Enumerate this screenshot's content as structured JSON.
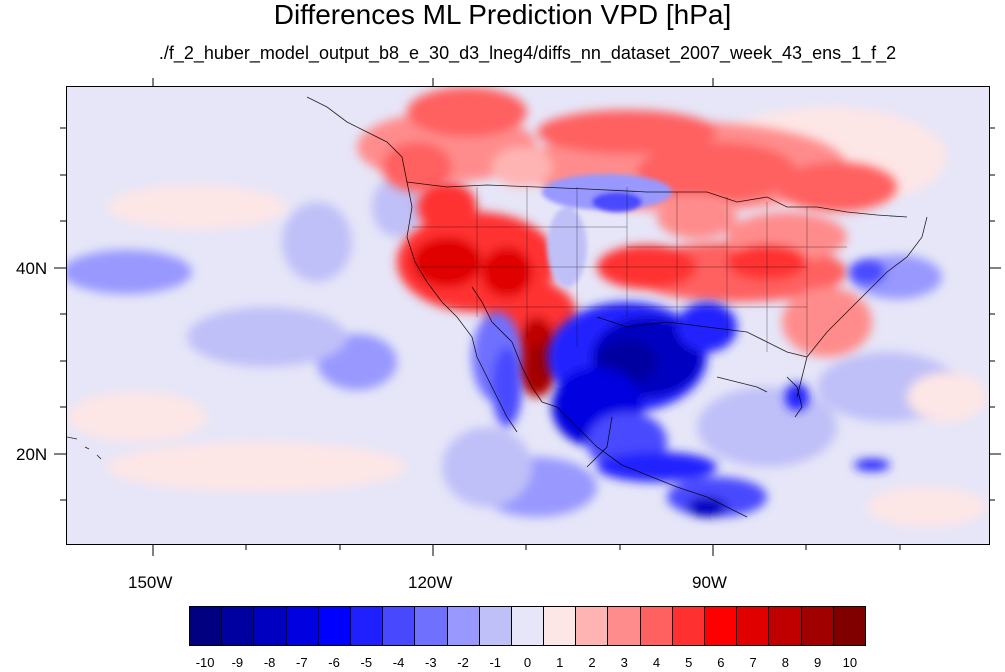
{
  "title": "Differences ML Prediction VPD [hPa]",
  "subtitle": "./f_2_huber_model_output_b8_e_30_d3_lneg4/diffs_nn_dataset_2007_week_43_ens_1_f_2",
  "lat_labels": [
    "40N",
    "20N"
  ],
  "lon_labels": [
    "150W",
    "120W",
    "90W"
  ],
  "colorbar": {
    "labels": [
      "-10",
      "-9",
      "-8",
      "-7",
      "-6",
      "-5",
      "-4",
      "-3",
      "-2",
      "-1",
      "0",
      "1",
      "2",
      "3",
      "4",
      "5",
      "6",
      "7",
      "8",
      "9",
      "10"
    ],
    "colors": [
      "#000080",
      "#0000a0",
      "#0000c0",
      "#0000e0",
      "#0000ff",
      "#2020ff",
      "#4848ff",
      "#7070ff",
      "#9898ff",
      "#c0c0f8",
      "#e6e6f8",
      "#fde6e6",
      "#ffb4b4",
      "#ff8c8c",
      "#ff6060",
      "#ff3030",
      "#ff0000",
      "#e00000",
      "#c00000",
      "#a00000",
      "#800000"
    ]
  },
  "map": {
    "projection": "cylindrical equidistant",
    "region": "North America and eastern Pacific",
    "background_value_color": "#e6e6f8"
  }
}
